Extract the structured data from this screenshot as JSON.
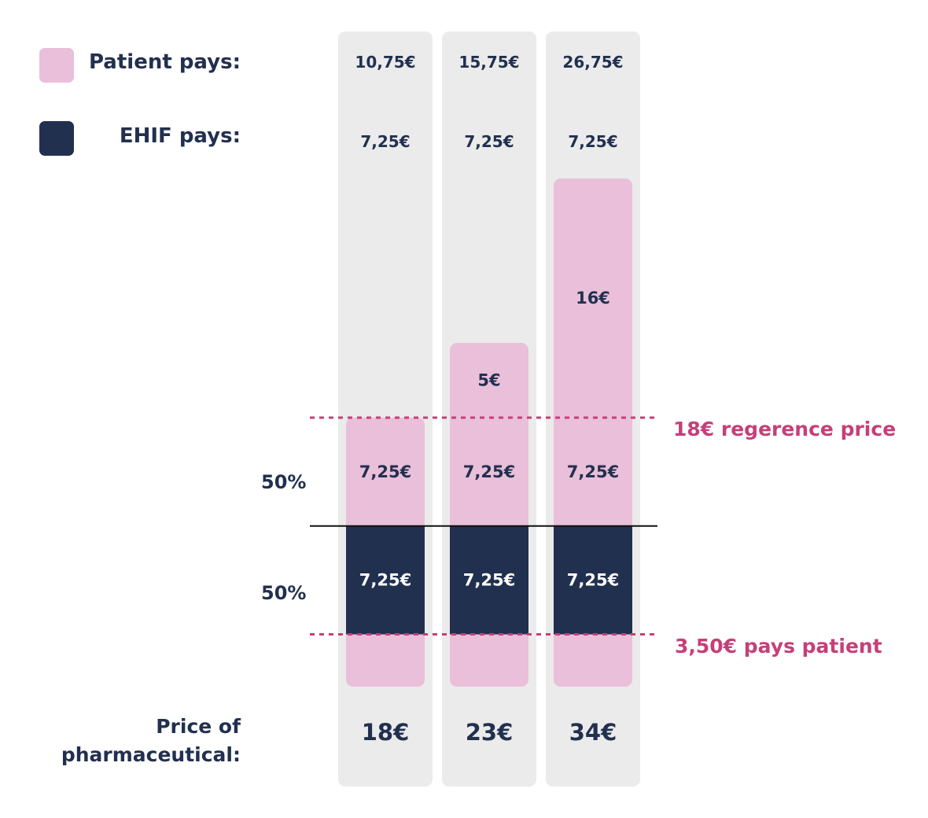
{
  "legend": {
    "patient_label": "Patient pays:",
    "ehif_label": "EHIF pays:"
  },
  "colors": {
    "patient": "#eabfd9",
    "ehif": "#22304f",
    "column_bg": "#ebebeb",
    "text": "#22304f",
    "reference": "#c63f79"
  },
  "split_labels": [
    "50%",
    "50%"
  ],
  "reference_lines": {
    "reference_price_label": "18€ regerence price",
    "deductible_label": "3,50€ pays patient"
  },
  "price_label": [
    "Price of",
    "pharmaceutical:"
  ],
  "chart_data": {
    "type": "bar",
    "stacked": true,
    "categories": [
      "18€",
      "23€",
      "34€"
    ],
    "unit": "€",
    "deductible": 3.5,
    "reference_price": 18,
    "patient_totals": [
      "10,75€",
      "15,75€",
      "26,75€"
    ],
    "ehif_totals": [
      "7,25€",
      "7,25€",
      "7,25€"
    ],
    "series": [
      {
        "key": "deductible",
        "role": "patient",
        "values": [
          3.5,
          3.5,
          3.5
        ],
        "labels": [
          "",
          "",
          ""
        ]
      },
      {
        "key": "ehif_share",
        "role": "ehif",
        "values": [
          7.25,
          7.25,
          7.25
        ],
        "labels": [
          "7,25€",
          "7,25€",
          "7,25€"
        ]
      },
      {
        "key": "patient_share",
        "role": "patient",
        "values": [
          7.25,
          7.25,
          7.25
        ],
        "labels": [
          "7,25€",
          "7,25€",
          "7,25€"
        ]
      },
      {
        "key": "above_reference",
        "role": "patient",
        "values": [
          0,
          5,
          16
        ],
        "labels": [
          "",
          "5€",
          "16€"
        ]
      }
    ]
  }
}
